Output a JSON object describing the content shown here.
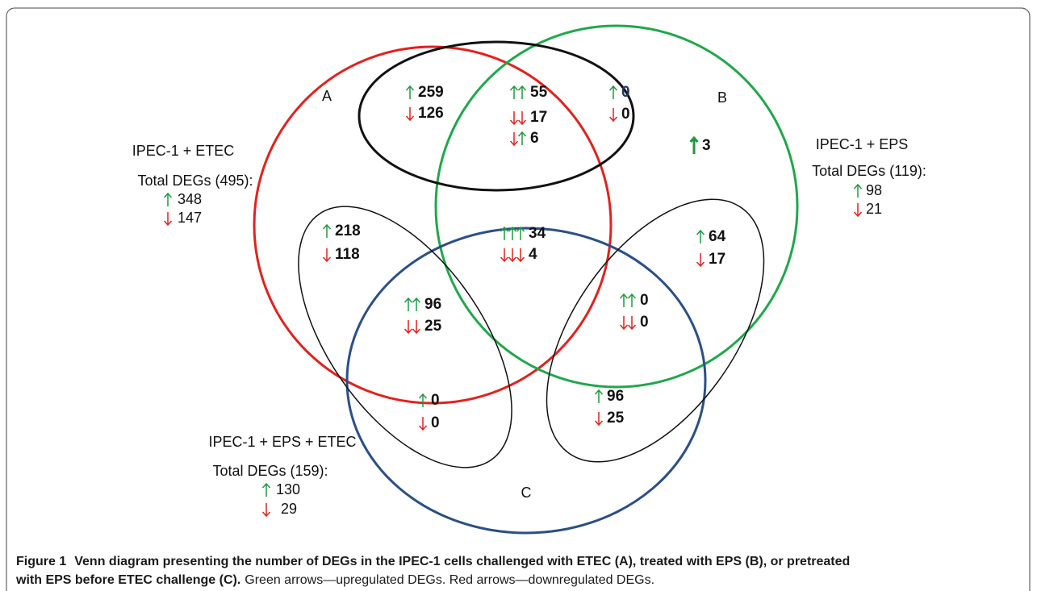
{
  "sets": [
    {
      "letter": "A",
      "name": "IPEC-1 + ETEC",
      "total": "Total DEGs (495):",
      "up": 348,
      "down": 147
    },
    {
      "letter": "B",
      "name": "IPEC-1 + EPS",
      "total": "Total DEGs (119):",
      "up": 98,
      "down": 21
    },
    {
      "letter": "C",
      "name": "IPEC-1 + EPS + ETEC",
      "total": "Total DEGs (159):",
      "up": 130,
      "down": 29
    }
  ],
  "regions": [
    {
      "values": [
        259,
        126
      ]
    },
    {
      "values": [
        55,
        17,
        6
      ]
    },
    {
      "values": [
        0,
        0
      ]
    },
    {
      "values": [
        3
      ]
    },
    {
      "values": [
        218,
        118
      ]
    },
    {
      "values": [
        34,
        4
      ]
    },
    {
      "values": [
        64,
        17
      ]
    },
    {
      "values": [
        96,
        25
      ]
    },
    {
      "values": [
        0,
        0
      ]
    },
    {
      "values": [
        0,
        0
      ]
    },
    {
      "values": [
        96,
        25
      ]
    }
  ],
  "caption": {
    "label": "Figure 1",
    "title_lines": [
      "Venn diagram presenting the number of DEGs in the IPEC-1 cells challenged with ETEC (A), treated with EPS (B), or pretreated",
      "with EPS before ETEC challenge (C)."
    ],
    "note": "Green arrows—upregulated DEGs. Red arrows—downregulated DEGs."
  }
}
